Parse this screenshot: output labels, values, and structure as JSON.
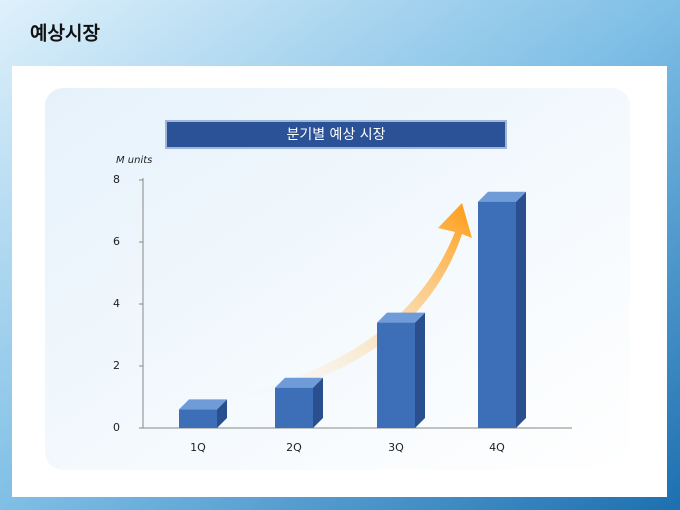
{
  "header": {
    "title": "예상시장"
  },
  "chart_data": {
    "type": "bar3d",
    "title": "분기별 예상 시장",
    "y_label": "M units",
    "categories": [
      "1Q",
      "2Q",
      "3Q",
      "4Q"
    ],
    "values": [
      0.6,
      1.3,
      3.4,
      7.3
    ],
    "color": "#3d6fb8",
    "ylim": [
      0,
      8
    ],
    "yticks": [
      0,
      2,
      4,
      6,
      8
    ],
    "grid": false
  }
}
